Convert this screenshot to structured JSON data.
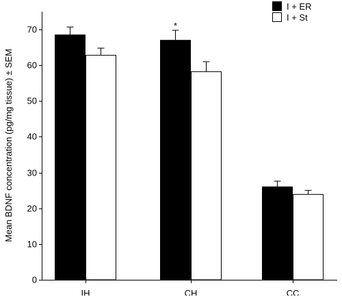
{
  "chart_data": {
    "type": "bar",
    "categories": [
      "IH",
      "CH",
      "CC"
    ],
    "series": [
      {
        "name": "I + ER",
        "values": [
          68.5,
          67.0,
          26.0
        ],
        "errors": [
          2.2,
          2.8,
          1.6
        ],
        "color": "#000000"
      },
      {
        "name": "I + St",
        "values": [
          62.8,
          58.2,
          23.9
        ],
        "errors": [
          2.0,
          2.8,
          1.1
        ],
        "color": "#ffffff"
      }
    ],
    "ylabel": "Mean BDNF concentration (pg/mg tissue) ± SEM",
    "xlabel": "",
    "title": "",
    "ylim": [
      0,
      75
    ],
    "yticks": [
      0,
      10,
      20,
      30,
      40,
      50,
      60,
      70
    ],
    "annotations": [
      {
        "category": "CH",
        "series": "I + ER",
        "text": "*"
      }
    ],
    "legend_position": "top-right",
    "grid": false
  }
}
